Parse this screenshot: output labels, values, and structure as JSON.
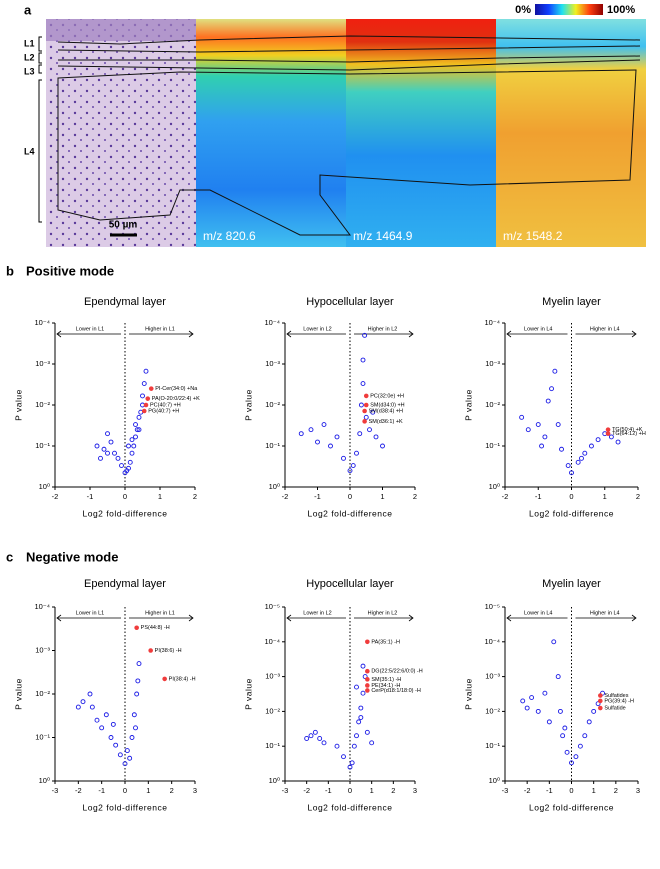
{
  "panel_a": {
    "label": "a",
    "layers": [
      "L1",
      "L2",
      "L3",
      "L4"
    ],
    "scale_bar": "50 µm",
    "mz_labels": [
      "m/z 820.6",
      "m/z 1464.9",
      "m/z 1548.2"
    ],
    "colorbar": {
      "min_label": "0%",
      "max_label": "100%"
    }
  },
  "panel_b": {
    "label": "b",
    "title": "Positive mode"
  },
  "panel_c": {
    "label": "c",
    "title": "Negative mode"
  },
  "chart_data": [
    {
      "type": "scatter",
      "title": "Ependymal layer",
      "xlabel": "Log2 fold-difference",
      "ylabel": "P value",
      "left_annotation": "Lower in L1",
      "right_annotation": "Higher in L1",
      "log_y": true,
      "xlim": [
        -2,
        2
      ],
      "xticks": [
        -2,
        -1,
        0,
        1,
        2
      ],
      "ylim": [
        1,
        0.0001
      ],
      "yticks": [
        {
          "value": 1,
          "label": "10⁰"
        },
        {
          "value": 0.1,
          "label": "10⁻¹"
        },
        {
          "value": 0.01,
          "label": "10⁻²"
        },
        {
          "value": 0.001,
          "label": "10⁻³"
        },
        {
          "value": 0.0001,
          "label": "10⁻⁴"
        }
      ],
      "points": {
        "color": "#1a1ae6",
        "x": [
          -0.8,
          -0.6,
          -0.5,
          -0.4,
          -0.3,
          -0.2,
          -0.1,
          0,
          0.05,
          0.1,
          0.15,
          0.2,
          0.25,
          0.3,
          0.35,
          0.4,
          0.45,
          0.5,
          0.55,
          0.6,
          0.3,
          0.2,
          -0.5,
          -0.7,
          0.1,
          0.4,
          0.5
        ],
        "y": [
          0.1,
          0.12,
          0.05,
          0.08,
          0.15,
          0.2,
          0.3,
          0.45,
          0.4,
          0.35,
          0.25,
          0.15,
          0.1,
          0.06,
          0.04,
          0.02,
          0.015,
          0.006,
          0.003,
          0.0015,
          0.03,
          0.07,
          0.15,
          0.2,
          0.1,
          0.04,
          0.01
        ]
      },
      "highlights": {
        "color": "#f03c3c",
        "x": [
          0.75,
          0.65,
          0.6,
          0.55
        ],
        "y": [
          0.004,
          0.007,
          0.01,
          0.014
        ],
        "labels": [
          "PI-Cer(34:0) +Na",
          "PA(O-20:0/22:4) +K",
          "PC(40:7) +H",
          "PG(40:7) +H"
        ]
      }
    },
    {
      "type": "scatter",
      "title": "Hypocellular layer",
      "xlabel": "Log2 fold-difference",
      "ylabel": "P value",
      "left_annotation": "Lower in L2",
      "right_annotation": "Higher in L2",
      "log_y": true,
      "xlim": [
        -2,
        2
      ],
      "xticks": [
        -2,
        -1,
        0,
        1,
        2
      ],
      "ylim": [
        1,
        0.0001
      ],
      "yticks": [
        {
          "value": 1,
          "label": "10⁰"
        },
        {
          "value": 0.1,
          "label": "10⁻¹"
        },
        {
          "value": 0.01,
          "label": "10⁻²"
        },
        {
          "value": 0.001,
          "label": "10⁻³"
        },
        {
          "value": 0.0001,
          "label": "10⁻⁴"
        }
      ],
      "points": {
        "color": "#1a1ae6",
        "x": [
          -1.5,
          -1.2,
          -1,
          -0.8,
          -0.6,
          -0.4,
          -0.2,
          0,
          0.1,
          0.2,
          0.3,
          0.35,
          0.4,
          0.4,
          0.45,
          0.5,
          0.6,
          0.8,
          1,
          0.7
        ],
        "y": [
          0.05,
          0.04,
          0.08,
          0.03,
          0.1,
          0.06,
          0.2,
          0.4,
          0.3,
          0.15,
          0.05,
          0.01,
          0.003,
          0.0008,
          0.0002,
          0.02,
          0.04,
          0.06,
          0.1,
          0.015
        ]
      },
      "highlights": {
        "color": "#f03c3c",
        "x": [
          0.5,
          0.5,
          0.45,
          0.45
        ],
        "y": [
          0.006,
          0.01,
          0.014,
          0.025
        ],
        "labels": [
          "PC(32:0e) +H",
          "SM(d34:0) +H",
          "SM(d38:4) +H",
          "SM(d36:1) +K"
        ]
      }
    },
    {
      "type": "scatter",
      "title": "Myelin layer",
      "xlabel": "Log2 fold-difference",
      "ylabel": "P value",
      "left_annotation": "Lower in L4",
      "right_annotation": "Higher in L4",
      "log_y": true,
      "xlim": [
        -2,
        2
      ],
      "xticks": [
        -2,
        -1,
        0,
        1,
        2
      ],
      "ylim": [
        1,
        0.0001
      ],
      "yticks": [
        {
          "value": 1,
          "label": "10⁰"
        },
        {
          "value": 0.1,
          "label": "10⁻¹"
        },
        {
          "value": 0.01,
          "label": "10⁻²"
        },
        {
          "value": 0.001,
          "label": "10⁻³"
        },
        {
          "value": 0.0001,
          "label": "10⁻⁴"
        }
      ],
      "points": {
        "color": "#1a1ae6",
        "x": [
          -1.5,
          -1.3,
          -1,
          -0.9,
          -0.7,
          -0.6,
          -0.5,
          -0.4,
          -0.3,
          -0.1,
          0,
          0.2,
          0.4,
          0.6,
          0.8,
          1,
          1.2,
          1.4,
          0.3,
          -0.8
        ],
        "y": [
          0.02,
          0.04,
          0.03,
          0.1,
          0.008,
          0.004,
          0.0015,
          0.03,
          0.12,
          0.3,
          0.45,
          0.25,
          0.15,
          0.1,
          0.07,
          0.05,
          0.06,
          0.08,
          0.2,
          0.06
        ]
      },
      "highlights": {
        "color": "#f03c3c",
        "x": [
          1.1,
          1.1
        ],
        "y": [
          0.04,
          0.05
        ],
        "labels": [
          "TG(50:4) +K",
          "TG(64:12) +H"
        ]
      }
    },
    {
      "type": "scatter",
      "title": "Ependymal layer",
      "xlabel": "Log2 fold-difference",
      "ylabel": "P value",
      "left_annotation": "Lower in L1",
      "right_annotation": "Higher in L1",
      "log_y": true,
      "xlim": [
        -3,
        3
      ],
      "xticks": [
        -3,
        -2,
        -1,
        0,
        1,
        2,
        3
      ],
      "ylim": [
        1,
        0.0001
      ],
      "yticks": [
        {
          "value": 1,
          "label": "10⁰"
        },
        {
          "value": 0.1,
          "label": "10⁻¹"
        },
        {
          "value": 0.01,
          "label": "10⁻²"
        },
        {
          "value": 0.001,
          "label": "10⁻³"
        },
        {
          "value": 0.0001,
          "label": "10⁻⁴"
        }
      ],
      "points": {
        "color": "#1a1ae6",
        "x": [
          -2,
          -1.8,
          -1.5,
          -1.4,
          -1.2,
          -1,
          -0.8,
          -0.6,
          -0.4,
          -0.2,
          0,
          0.2,
          0.3,
          0.4,
          0.5,
          0.55,
          0.6,
          0.45,
          -0.5,
          0.1
        ],
        "y": [
          0.02,
          0.015,
          0.01,
          0.02,
          0.04,
          0.06,
          0.03,
          0.1,
          0.15,
          0.25,
          0.4,
          0.3,
          0.1,
          0.03,
          0.01,
          0.005,
          0.002,
          0.06,
          0.05,
          0.2
        ]
      },
      "highlights": {
        "color": "#f03c3c",
        "x": [
          0.5,
          1.1,
          1.7
        ],
        "y": [
          0.0003,
          0.001,
          0.0045
        ],
        "labels": [
          "PS(44:8) -H",
          "PI(38:6) -H",
          "PI(38:4) -H"
        ]
      }
    },
    {
      "type": "scatter",
      "title": "Hypocellular layer",
      "xlabel": "Log2 fold-difference",
      "ylabel": "P value",
      "left_annotation": "Lower in L2",
      "right_annotation": "Higher in L2",
      "log_y": true,
      "xlim": [
        -3,
        3
      ],
      "xticks": [
        -3,
        -2,
        -1,
        0,
        1,
        2,
        3
      ],
      "ylim": [
        1,
        1e-05
      ],
      "yticks": [
        {
          "value": 1,
          "label": "10⁰"
        },
        {
          "value": 0.1,
          "label": "10⁻¹"
        },
        {
          "value": 0.01,
          "label": "10⁻²"
        },
        {
          "value": 0.001,
          "label": "10⁻³"
        },
        {
          "value": 0.0001,
          "label": "10⁻⁴"
        },
        {
          "value": 1e-05,
          "label": "10⁻⁵"
        }
      ],
      "points": {
        "color": "#1a1ae6",
        "x": [
          -2,
          -1.8,
          -1.6,
          -1.4,
          -1.2,
          -0.6,
          -0.3,
          0,
          0.1,
          0.2,
          0.3,
          0.4,
          0.5,
          0.6,
          0.7,
          0.6,
          0.5,
          0.8,
          1,
          0.3
        ],
        "y": [
          0.06,
          0.05,
          0.04,
          0.06,
          0.08,
          0.1,
          0.2,
          0.4,
          0.3,
          0.1,
          0.05,
          0.02,
          0.008,
          0.003,
          0.001,
          0.0005,
          0.015,
          0.04,
          0.08,
          0.002
        ]
      },
      "highlights": {
        "color": "#f03c3c",
        "x": [
          0.8,
          0.8,
          0.8,
          0.8,
          0.8
        ],
        "y": [
          0.0001,
          0.0007,
          0.0012,
          0.0018,
          0.0025
        ],
        "labels": [
          "PA(35:1) -H",
          "DG(22:5/22:6/0:0) -H",
          "SM(35:1) -H",
          "PE(34:1) -H",
          "CerP(d18:1/18:0) -H"
        ]
      }
    },
    {
      "type": "scatter",
      "title": "Myelin layer",
      "xlabel": "Log2 fold-difference",
      "ylabel": "P value",
      "left_annotation": "Lower in L4",
      "right_annotation": "Higher in L4",
      "log_y": true,
      "xlim": [
        -3,
        3
      ],
      "xticks": [
        -3,
        -2,
        -1,
        0,
        1,
        2,
        3
      ],
      "ylim": [
        1,
        1e-05
      ],
      "yticks": [
        {
          "value": 1,
          "label": "10⁰"
        },
        {
          "value": 0.1,
          "label": "10⁻¹"
        },
        {
          "value": 0.01,
          "label": "10⁻²"
        },
        {
          "value": 0.001,
          "label": "10⁻³"
        },
        {
          "value": 0.0001,
          "label": "10⁻⁴"
        },
        {
          "value": 1e-05,
          "label": "10⁻⁵"
        }
      ],
      "points": {
        "color": "#1a1ae6",
        "x": [
          -2.2,
          -2,
          -1.8,
          -1.5,
          -1.2,
          -1,
          -0.8,
          -0.6,
          -0.5,
          -0.4,
          -0.2,
          0,
          0.2,
          0.4,
          0.6,
          0.8,
          1,
          1.2,
          1.4,
          -0.3
        ],
        "y": [
          0.005,
          0.008,
          0.004,
          0.01,
          0.003,
          0.02,
          0.0001,
          0.001,
          0.01,
          0.05,
          0.15,
          0.3,
          0.2,
          0.1,
          0.05,
          0.02,
          0.01,
          0.006,
          0.003,
          0.03
        ]
      },
      "highlights": {
        "color": "#f03c3c",
        "x": [
          1.3,
          1.3,
          1.3
        ],
        "y": [
          0.0035,
          0.005,
          0.008
        ],
        "labels": [
          "Sulfatides",
          "PG(39:4) -H",
          "Sulfatide"
        ]
      }
    }
  ]
}
